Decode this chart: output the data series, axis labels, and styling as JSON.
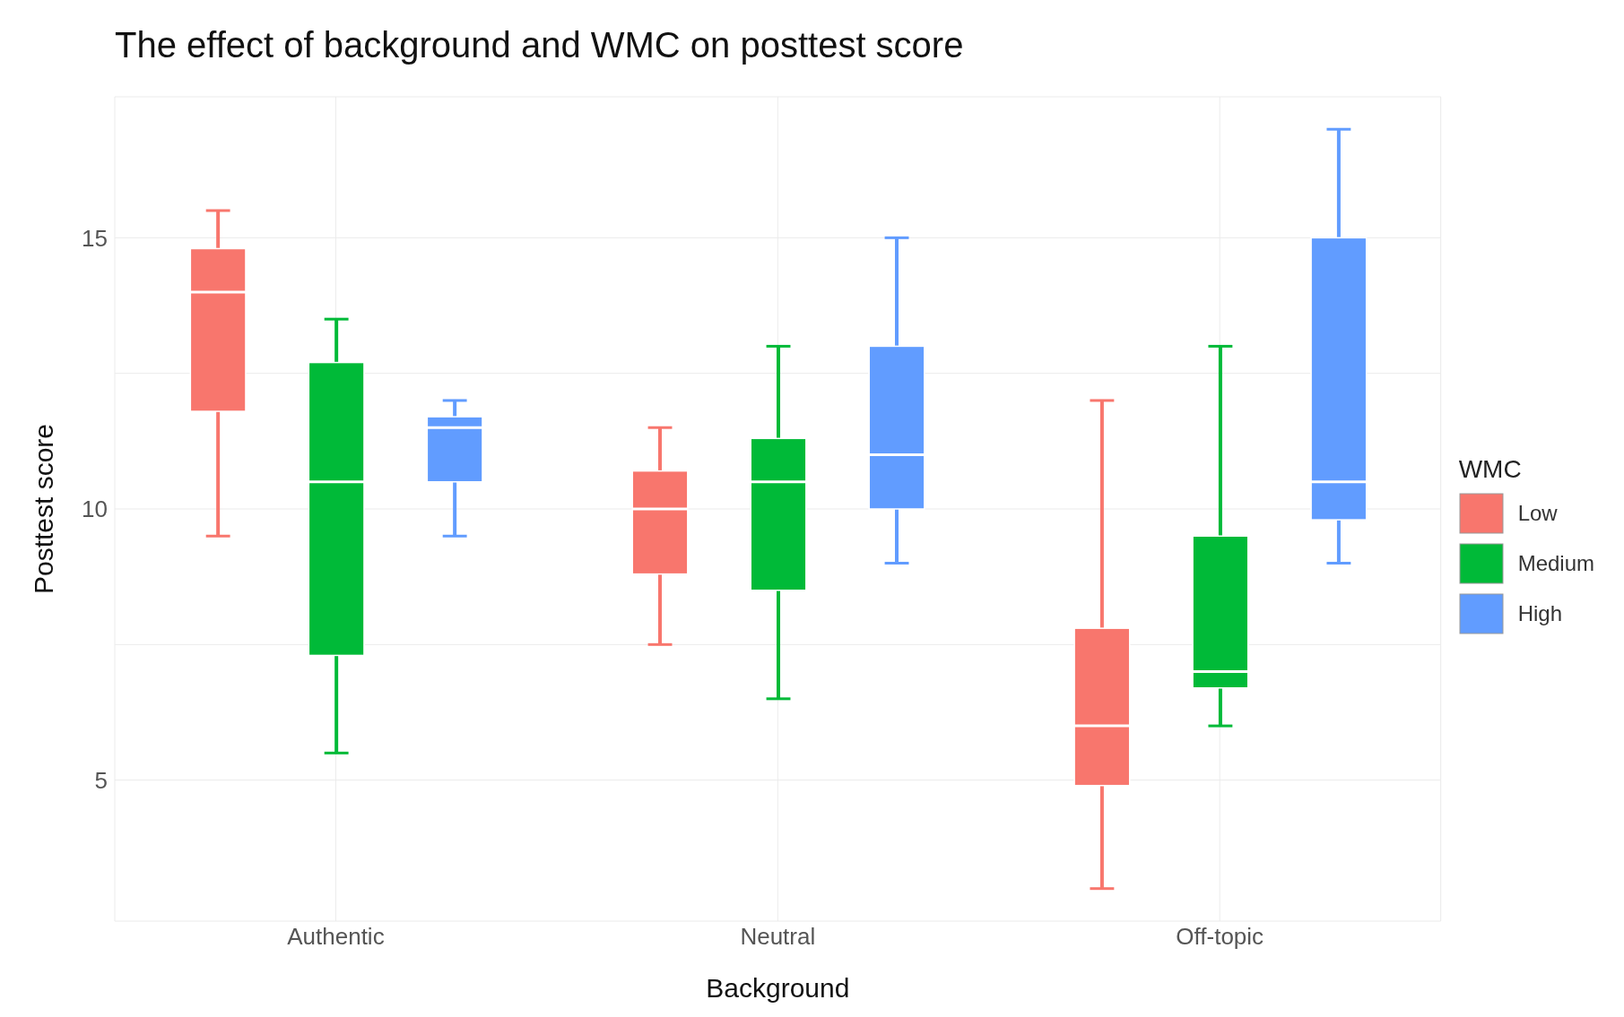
{
  "chart_data": {
    "type": "box",
    "title": "The effect of background and WMC on posttest score",
    "xlabel": "Background",
    "ylabel": "Posttest score",
    "legend_title": "WMC",
    "categories": [
      "Authentic",
      "Neutral",
      "Off-topic"
    ],
    "series": [
      {
        "name": "Low",
        "color": "#f8766d",
        "boxes": [
          {
            "low": 9.5,
            "q1": 11.8,
            "median": 14,
            "q3": 14.8,
            "high": 15.5
          },
          {
            "low": 7.5,
            "q1": 8.8,
            "median": 10,
            "q3": 10.7,
            "high": 11.5
          },
          {
            "low": 3,
            "q1": 4.9,
            "median": 6,
            "q3": 7.8,
            "high": 12
          }
        ]
      },
      {
        "name": "Medium",
        "color": "#00ba38",
        "boxes": [
          {
            "low": 5.5,
            "q1": 7.3,
            "median": 10.5,
            "q3": 12.7,
            "high": 13.5
          },
          {
            "low": 6.5,
            "q1": 8.5,
            "median": 10.5,
            "q3": 11.3,
            "high": 13
          },
          {
            "low": 6,
            "q1": 6.7,
            "median": 7,
            "q3": 9.5,
            "high": 13
          }
        ]
      },
      {
        "name": "High",
        "color": "#619cff",
        "boxes": [
          {
            "low": 9.5,
            "q1": 10.5,
            "median": 11.5,
            "q3": 11.7,
            "high": 12
          },
          {
            "low": 9,
            "q1": 10,
            "median": 11,
            "q3": 13,
            "high": 15
          },
          {
            "low": 9,
            "q1": 9.8,
            "median": 10.5,
            "q3": 15,
            "high": 17
          }
        ]
      }
    ],
    "ylim": [
      2.4,
      17.6
    ],
    "yticks": [
      5,
      {
        "value": 7.5,
        "label": null
      },
      10,
      {
        "value": 12.5,
        "label": null
      },
      15
    ],
    "grid": true,
    "legend": "right"
  }
}
